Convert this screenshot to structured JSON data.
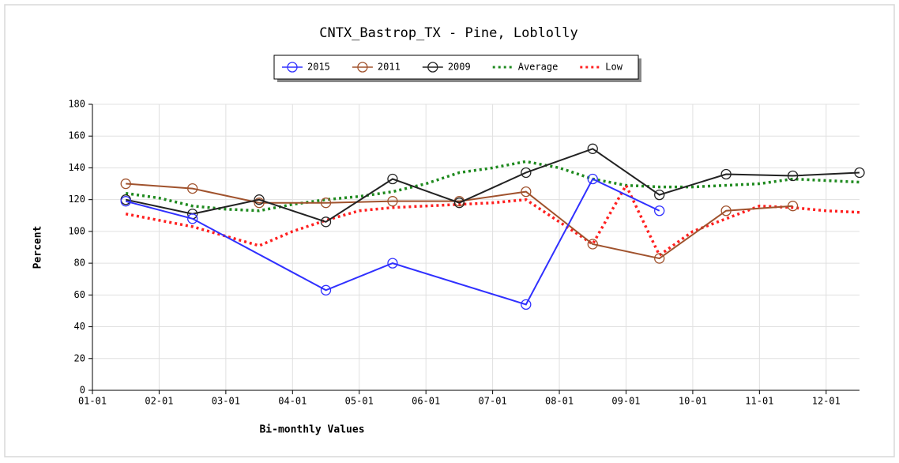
{
  "chart_data": {
    "type": "line",
    "title": "CNTX_Bastrop_TX - Pine, Loblolly",
    "xlabel": "Bi-monthly Values",
    "ylabel": "Percent",
    "xlim": [
      0,
      11.5
    ],
    "xticks": [
      {
        "value": 0,
        "label": "01-01"
      },
      {
        "value": 1,
        "label": "02-01"
      },
      {
        "value": 2,
        "label": "03-01"
      },
      {
        "value": 3,
        "label": "04-01"
      },
      {
        "value": 4,
        "label": "05-01"
      },
      {
        "value": 5,
        "label": "06-01"
      },
      {
        "value": 6,
        "label": "07-01"
      },
      {
        "value": 7,
        "label": "08-01"
      },
      {
        "value": 8,
        "label": "09-01"
      },
      {
        "value": 9,
        "label": "10-01"
      },
      {
        "value": 10,
        "label": "11-01"
      },
      {
        "value": 11,
        "label": "12-01"
      }
    ],
    "ylim": [
      0,
      180
    ],
    "yticks": [
      0,
      20,
      40,
      60,
      80,
      100,
      120,
      140,
      160,
      180
    ],
    "grid": true,
    "legend": "top",
    "series": [
      {
        "name": "2015",
        "color": "#3030ff",
        "style": "solid",
        "marker": true,
        "x": [
          0.5,
          1.5,
          3.5,
          4.5,
          6.5,
          7.5,
          8.5
        ],
        "values": [
          119,
          108,
          63,
          80,
          54,
          133,
          113
        ]
      },
      {
        "name": "2011",
        "color": "#a0522d",
        "style": "solid",
        "marker": true,
        "x": [
          0.5,
          1.5,
          2.5,
          3.5,
          4.5,
          5.5,
          6.5,
          7.5,
          8.5,
          9.5,
          10.5
        ],
        "values": [
          130,
          127,
          118,
          118,
          119,
          119,
          125,
          92,
          83,
          113,
          116
        ]
      },
      {
        "name": "2009",
        "color": "#222222",
        "style": "solid",
        "marker": true,
        "x": [
          0.5,
          1.5,
          2.5,
          3.5,
          4.5,
          5.5,
          6.5,
          7.5,
          8.5,
          9.5,
          10.5,
          11.5
        ],
        "values": [
          120,
          111,
          120,
          106,
          133,
          118,
          137,
          152,
          123,
          136,
          135,
          137
        ]
      },
      {
        "name": "Average",
        "color": "#1f8a1f",
        "style": "dotted",
        "marker": false,
        "x": [
          0.5,
          1,
          1.5,
          2,
          2.5,
          3,
          3.5,
          4,
          4.5,
          5,
          5.5,
          6,
          6.5,
          7,
          7.5,
          8,
          8.5,
          9,
          9.5,
          10,
          10.5,
          11,
          11.5
        ],
        "values": [
          124,
          121,
          116,
          114,
          113,
          117,
          120,
          122,
          125,
          130,
          137,
          140,
          144,
          140,
          133,
          129,
          128,
          128,
          129,
          130,
          133,
          132,
          131
        ]
      },
      {
        "name": "Low",
        "color": "#ff2020",
        "style": "dotted",
        "marker": false,
        "x": [
          0.5,
          1,
          1.5,
          2,
          2.5,
          3,
          3.5,
          4,
          4.5,
          5,
          5.5,
          6,
          6.5,
          7,
          7.5,
          8,
          8.5,
          9,
          9.5,
          10,
          10.5,
          11,
          11.5
        ],
        "values": [
          111,
          107,
          103,
          97,
          91,
          100,
          107,
          113,
          115,
          116,
          117,
          118,
          120,
          106,
          92,
          129,
          85,
          100,
          108,
          116,
          115,
          113,
          112
        ]
      }
    ]
  }
}
